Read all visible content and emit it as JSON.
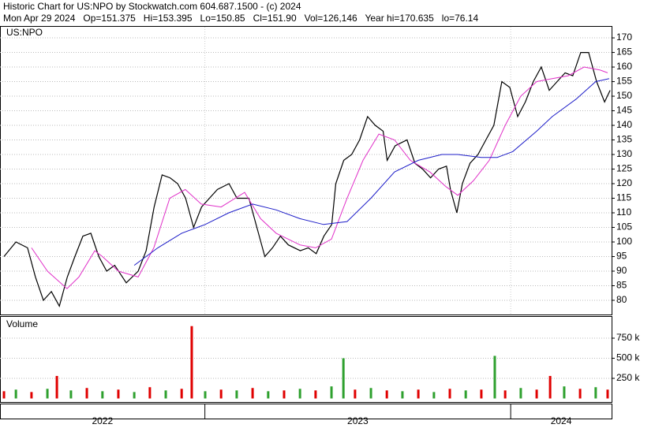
{
  "header": {
    "line1": "Historic Chart for US:NPO by Stockwatch.com 604.687.1500 - (c) 2024",
    "line2": "Mon Apr 29 2024   Op=151.375   Hi=153.395   Lo=150.85   Cl=151.90   Vol=126,146   Year hi=170.635   lo=76.14"
  },
  "chart_data": [
    {
      "type": "line",
      "title": "US:NPO",
      "grid": true,
      "xlim": [
        2022.33,
        2024.33
      ],
      "xticks": [
        2022,
        2023,
        2024
      ],
      "ylim": [
        75.4,
        173.8
      ],
      "yticks": [
        80,
        85,
        90,
        95,
        100,
        105,
        110,
        115,
        120,
        125,
        130,
        135,
        140,
        145,
        150,
        155,
        160,
        165,
        170
      ],
      "series": [
        {
          "color": "#000000",
          "x": [
            2022.343,
            2022.382,
            2022.42,
            2022.446,
            2022.472,
            2022.498,
            2022.524,
            2022.55,
            2022.575,
            2022.601,
            2022.627,
            2022.653,
            2022.679,
            2022.705,
            2022.743,
            2022.782,
            2022.808,
            2022.834,
            2022.86,
            2022.886,
            2022.911,
            2022.937,
            2022.963,
            2022.989,
            2023.015,
            2023.041,
            2023.079,
            2023.105,
            2023.144,
            2023.17,
            2023.196,
            2023.221,
            2023.247,
            2023.273,
            2023.312,
            2023.338,
            2023.364,
            2023.389,
            2023.415,
            2023.428,
            2023.454,
            2023.48,
            2023.506,
            2023.532,
            2023.557,
            2023.583,
            2023.596,
            2023.622,
            2023.661,
            2023.687,
            2023.712,
            2023.738,
            2023.764,
            2023.79,
            2023.803,
            2023.824,
            2023.842,
            2023.867,
            2023.893,
            2023.919,
            2023.945,
            2023.971,
            2023.997,
            2024.023,
            2024.048,
            2024.074,
            2024.1,
            2024.126,
            2024.152,
            2024.178,
            2024.203,
            2024.229,
            2024.255,
            2024.281,
            2024.307,
            2024.325
          ],
          "values": [
            95,
            100,
            98,
            88,
            80,
            83,
            78,
            88,
            95,
            102,
            103,
            95,
            90,
            92,
            86,
            90,
            97,
            112,
            123,
            122,
            120,
            115,
            105,
            112,
            115,
            118,
            120,
            115,
            115,
            105,
            95,
            98,
            102,
            99,
            97,
            98,
            96,
            102,
            106,
            120,
            128,
            130,
            135,
            143,
            140,
            138,
            128,
            133,
            135,
            127,
            125,
            122,
            125,
            126,
            118,
            110,
            120,
            127,
            130,
            135,
            140,
            155,
            153,
            143,
            148,
            155,
            160,
            152,
            155,
            158,
            157,
            165,
            165,
            155,
            148,
            152
          ]
        },
        {
          "color": "#e030c8",
          "x": [
            2022.433,
            2022.485,
            2022.549,
            2022.588,
            2022.64,
            2022.665,
            2022.717,
            2022.782,
            2022.833,
            2022.885,
            2022.936,
            2022.988,
            2023.053,
            2023.13,
            2023.182,
            2023.233,
            2023.311,
            2023.362,
            2023.414,
            2023.465,
            2023.517,
            2023.569,
            2023.62,
            2023.672,
            2023.736,
            2023.788,
            2023.827,
            2023.878,
            2023.93,
            2023.982,
            2024.033,
            2024.085,
            2024.136,
            2024.188,
            2024.24,
            2024.291,
            2024.317
          ],
          "values": [
            98,
            90,
            84,
            88,
            97,
            95,
            90,
            88,
            98,
            115,
            118,
            113,
            112,
            117,
            108,
            103,
            99,
            98,
            101,
            115,
            128,
            137,
            135,
            128,
            124,
            119,
            116,
            121,
            128,
            140,
            150,
            155,
            156,
            157,
            160,
            159,
            158
          ]
        },
        {
          "color": "#1c1cc8",
          "x": [
            2022.769,
            2022.846,
            2022.924,
            2023.001,
            2023.078,
            2023.156,
            2023.233,
            2023.311,
            2023.388,
            2023.465,
            2023.543,
            2023.62,
            2023.698,
            2023.775,
            2023.827,
            2023.904,
            2023.956,
            2024.007,
            2024.085,
            2024.136,
            2024.214,
            2024.278,
            2024.322
          ],
          "values": [
            92,
            98,
            103,
            106,
            110,
            113,
            111,
            108,
            106,
            107,
            115,
            124,
            128,
            130,
            130,
            129,
            129,
            131,
            138,
            143,
            149,
            155,
            156
          ]
        }
      ]
    },
    {
      "type": "bar",
      "title": "Volume",
      "xlim": [
        2022.33,
        2024.33
      ],
      "xticks": [
        2022,
        2023,
        2024
      ],
      "ylim": [
        -44000,
        1015000
      ],
      "yticks": [
        {
          "value": 250000,
          "label": "250 k"
        },
        {
          "value": 500000,
          "label": "500 k"
        },
        {
          "value": 750000,
          "label": "750 k"
        }
      ],
      "x": [
        2022.343,
        2022.382,
        2022.433,
        2022.485,
        2022.516,
        2022.562,
        2022.614,
        2022.665,
        2022.717,
        2022.769,
        2022.82,
        2022.872,
        2022.924,
        2022.957,
        2023.001,
        2023.053,
        2023.104,
        2023.156,
        2023.207,
        2023.259,
        2023.311,
        2023.362,
        2023.414,
        2023.453,
        2023.491,
        2023.543,
        2023.595,
        2023.646,
        2023.698,
        2023.749,
        2023.801,
        2023.853,
        2023.904,
        2023.948,
        2023.982,
        2024.033,
        2024.085,
        2024.129,
        2024.175,
        2024.227,
        2024.278,
        2024.317
      ],
      "values": [
        90000,
        110000,
        80000,
        120000,
        280000,
        100000,
        130000,
        90000,
        110000,
        80000,
        140000,
        100000,
        120000,
        900000,
        90000,
        110000,
        100000,
        130000,
        90000,
        100000,
        120000,
        100000,
        150000,
        500000,
        110000,
        130000,
        100000,
        90000,
        110000,
        80000,
        120000,
        100000,
        110000,
        530000,
        100000,
        130000,
        110000,
        280000,
        150000,
        120000,
        140000,
        110000
      ],
      "colors": [
        "#e00000",
        "#2ea02e",
        "#e00000",
        "#2ea02e",
        "#e00000",
        "#2ea02e",
        "#e00000",
        "#2ea02e",
        "#e00000",
        "#2ea02e",
        "#e00000",
        "#2ea02e",
        "#e00000",
        "#e00000",
        "#2ea02e",
        "#e00000",
        "#2ea02e",
        "#e00000",
        "#2ea02e",
        "#e00000",
        "#2ea02e",
        "#e00000",
        "#2ea02e",
        "#2ea02e",
        "#e00000",
        "#2ea02e",
        "#e00000",
        "#2ea02e",
        "#e00000",
        "#2ea02e",
        "#e00000",
        "#2ea02e",
        "#e00000",
        "#2ea02e",
        "#e00000",
        "#2ea02e",
        "#e00000",
        "#e00000",
        "#2ea02e",
        "#e00000",
        "#2ea02e",
        "#e00000"
      ]
    }
  ]
}
